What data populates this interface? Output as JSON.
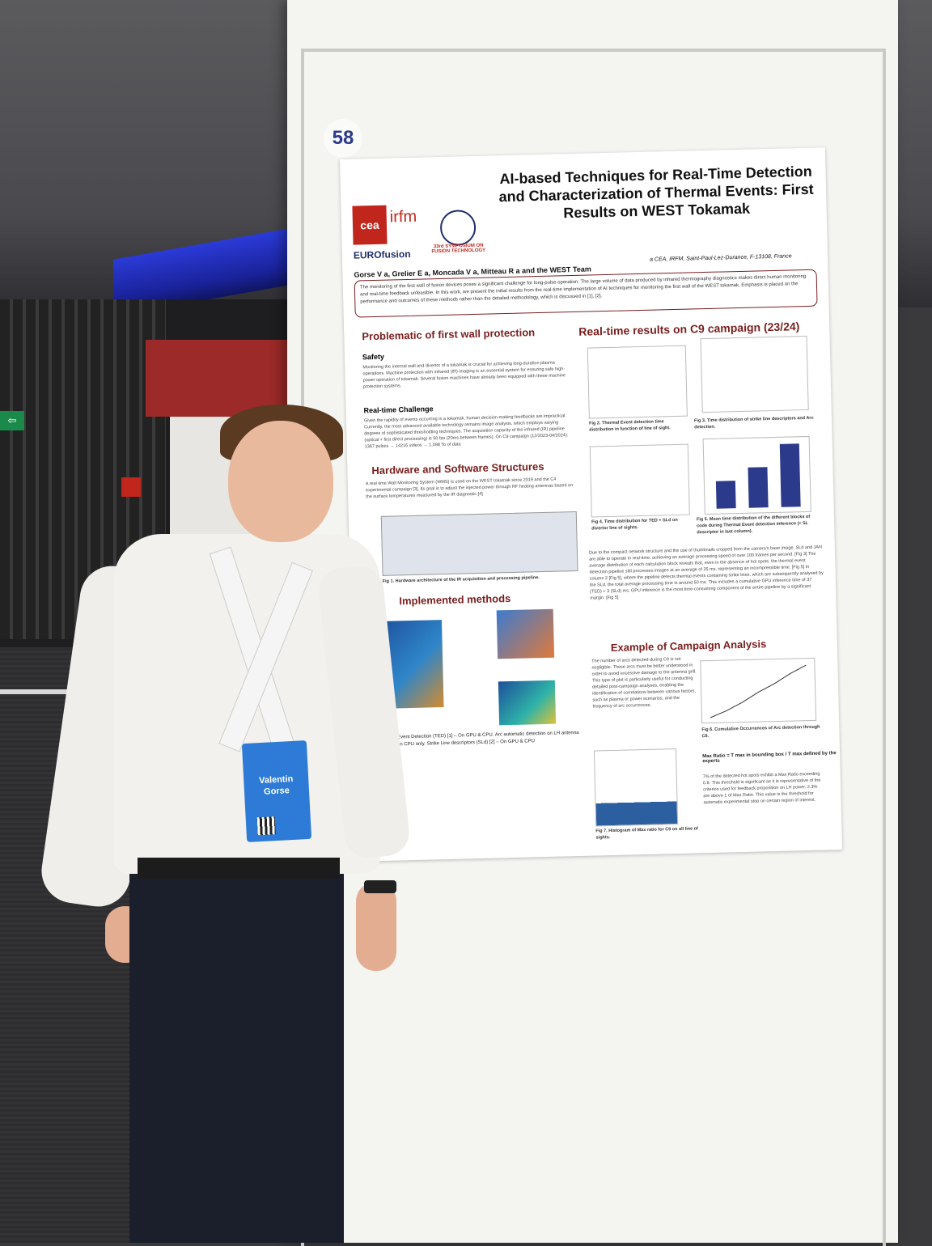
{
  "booth": {
    "number": "58"
  },
  "poster": {
    "title": "AI-based Techniques for Real-Time Detection and Characterization of Thermal Events: First Results on WEST Tokamak",
    "logos": {
      "cea": "cea",
      "irfm": "irfm",
      "eurofusion": "EUROfusion",
      "symposium": "33rd SYMPOSIUM ON FUSION TECHNOLOGY"
    },
    "authors": "Gorse V a, Grelier E a, Moncada V a, Mitteau R a and the WEST Team",
    "affiliation": "a CEA, IRFM, Saint-Paul-Lez-Durance, F-13108, France",
    "intro": "The monitoring of the first wall of fusion devices poses a significant challenge for long-pulse operation. The large volume of data produced by infrared thermography diagnostics makes direct human monitoring and real-time feedback unfeasible. In this work, we present the initial results from the real-time implementation of AI techniques for monitoring the first wall of the WEST tokamak. Emphasis is placed on the performance and outcomes of these methods rather than the detailed methodology, which is discussed in [1], [2].",
    "sections": {
      "problem": "Problematic of first wall protection",
      "safety": "Safety",
      "safety_text": "Monitoring the internal wall and divertor of a tokamak is crucial for achieving long-duration plasma operations. Machine protection with infrared (IR) imaging is an essential system for ensuring safe high-power operation of tokamak. Several fusion machines have already been equipped with these machine protection systems.",
      "realtime": "Real-time Challenge",
      "realtime_text": "Given the rapidity of events occurring in a tokamak, human decision-making feedbacks are impractical. Currently, the most advanced available technology remains image analysis, which employs varying degrees of sophisticated thresholding techniques. The acquisition capacity of the infrared (IR) pipeline (optical + first direct processing) is 50 fps (20ms between frames). On C9 campaign (12/2023-04/2024): 1367 pulses → 14216 videos → 1,098 To of data",
      "hardware": "Hardware and Software Structures",
      "hardware_text": "A real time Wall Monitoring System (WMS) is used on the WEST tokamak since 2019 and the C4 experimental campaign [3]. Its goal is to adjust the injected power through RF heating antennas based on the surface temperatures measured by the IR diagnostic [4]",
      "fig1": "Fig 1. Hardware architecture of the IR acquisition and processing pipeline.",
      "methods": "Implemented methods",
      "methods_text": "Thermal Event Detection (TED) [1] – On GPU & CPU. Arc automatic detection on LH antenna (JAN) – On CPU only. Strike Line descriptors (SLd) [2] – On GPU & CPU",
      "results": "Real-time results on C9 campaign (23/24)",
      "fig2": "Fig 2. Thermal Event detection time distribution in function of line of sight.",
      "fig3": "Fig 3. Time distribution of strike line descriptors and Arc detection.",
      "fig4": "Fig 4. Time distribution for TED + SLd on divertor line of sights.",
      "fig5": "Fig 5. Mean time distribution of the different blocks of code during Thermal Event detection inference (+ SL descriptor in last column).",
      "results_text": "Due to the compact network structure and the use of thumbnails cropped from the camera's base image, SLd and JAN are able to operate in real-time, achieving an average processing speed of over 100 frames per second. [Fig 3] The average distribution of each calculation block reveals that, even in the absence of hot spots, the thermal event detection pipeline still processes images at an average of 25 ms, representing an incompressible time. [Fig 5] In column 2 [Fig 5], where the pipeline detects thermal events containing strike lines, which are subsequently analysed by the SLd, the total average processing time is around 50 ms. This includes a cumulative GPU inference time of 37 (TED) + 3 (SLd) ms. GPU inference is the most time-consuming component of the entire pipeline by a significant margin. [Fig 5]",
      "campaign": "Example of Campaign Analysis",
      "campaign_text": "The number of arcs detected during C9 is not negligible. These arcs must be better understood in order to avoid excessive damage to the antenna grill. This type of plot is particularly useful for conducting detailed post-campaign analyses, enabling the identification of correlations between various factors, such as plasma or power scenarios, and the frequency of arc occurrences.",
      "fig6": "Fig 6. Cumulative Occurrences of Arc detection through C9.",
      "fig7": "Fig 7. Histogram of Max ratio for C9 on all line of sights.",
      "maxratio": "Max Ratio = T max in bounding box / T max defined by the experts",
      "maxratio_text": "7% of the detected hot spots exhibit a Max Ratio exceeding 0.8. This threshold is significant as it is representative of the criterion used for feedback proposition on LH power. 2.3% are above 1 of Max Ratio. This value is the threshold for automatic experimental stop on certain region of interest."
    }
  },
  "badge": {
    "first_name": "Valentin",
    "last_name": "Gorse"
  },
  "signs": {
    "exit": "⇦"
  }
}
